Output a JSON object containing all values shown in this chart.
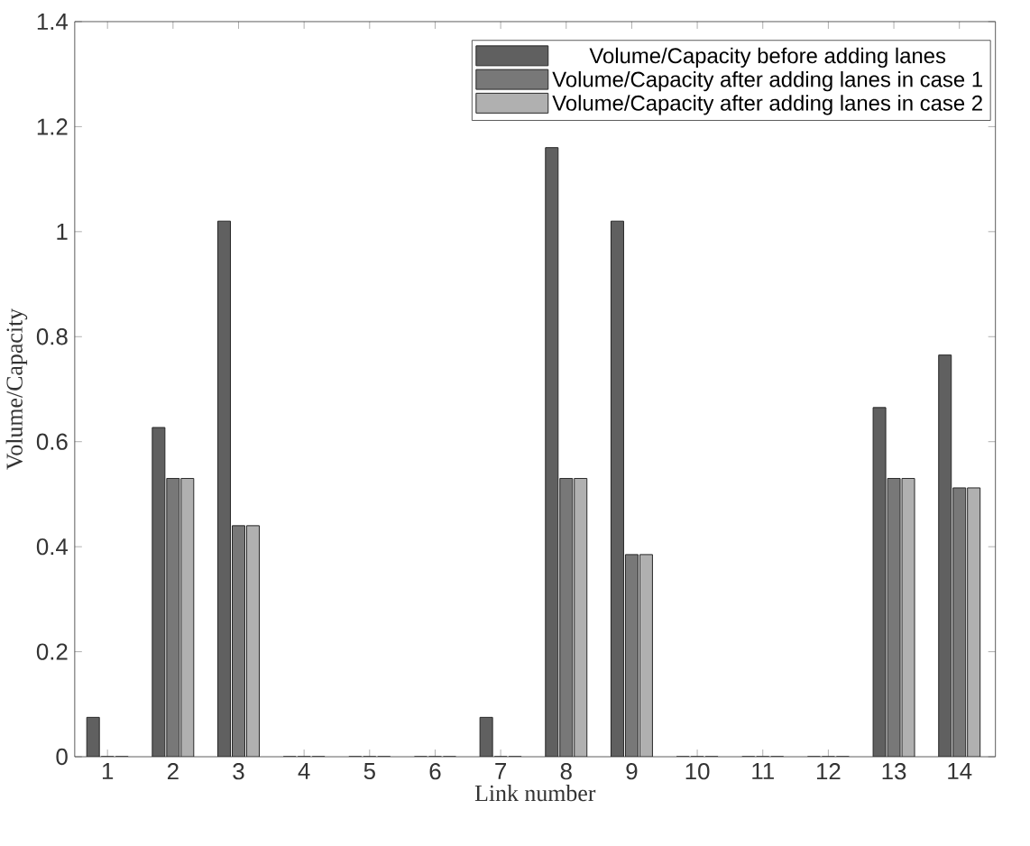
{
  "chart_data": {
    "type": "bar",
    "xlabel": "Link number",
    "ylabel": "Volume/Capacity",
    "categories": [
      "1",
      "2",
      "3",
      "4",
      "5",
      "6",
      "7",
      "8",
      "9",
      "10",
      "11",
      "12",
      "13",
      "14"
    ],
    "series": [
      {
        "name": "Volume/Capacity before adding lanes",
        "color": "#606060",
        "values": [
          0.075,
          0.627,
          1.02,
          0,
          0,
          0,
          0.075,
          1.16,
          1.02,
          0,
          0,
          0,
          0.665,
          0.765
        ]
      },
      {
        "name": "Volume/Capacity after adding lanes in case 1",
        "color": "#787878",
        "values": [
          0,
          0.53,
          0.44,
          0,
          0,
          0,
          0,
          0.53,
          0.385,
          0,
          0,
          0,
          0.53,
          0.512
        ]
      },
      {
        "name": "Volume/Capacity after adding lanes in case 2",
        "color": "#b0b0b0",
        "values": [
          0,
          0.53,
          0.44,
          0,
          0,
          0,
          0,
          0.53,
          0.385,
          0,
          0,
          0,
          0.53,
          0.512
        ]
      }
    ],
    "ylim": [
      0,
      1.4
    ],
    "yticks": [
      0,
      0.2,
      0.4,
      0.6,
      0.8,
      1,
      1.2,
      1.4
    ],
    "grid": false,
    "legend": "top right"
  }
}
